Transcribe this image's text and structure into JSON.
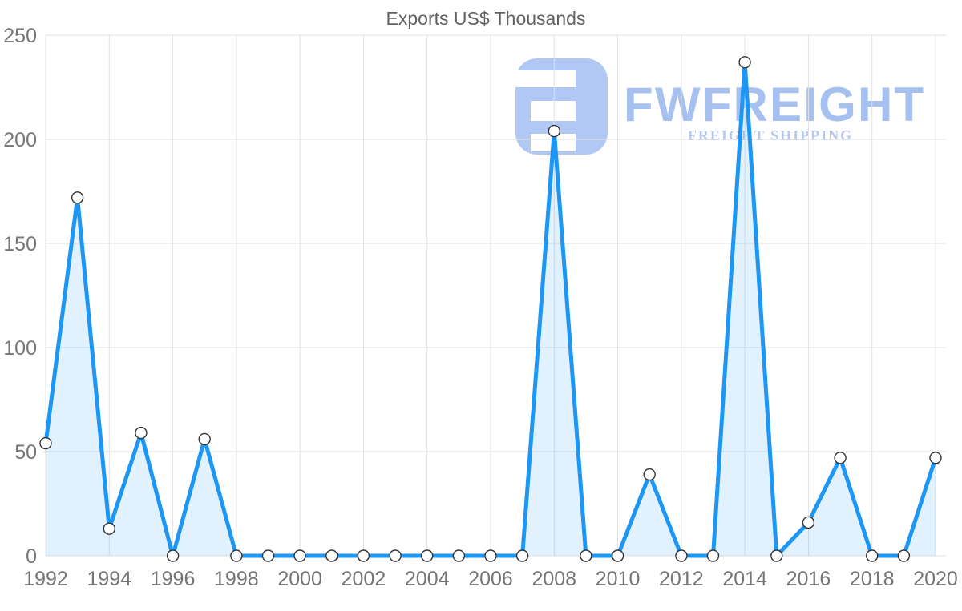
{
  "title": "Exports US$ Thousands",
  "watermark": {
    "brand": "FWFREIGHT",
    "tagline": "FREIGHT SHIPPING",
    "logo_color": "#aec5f3",
    "brand_color": "#a6c0ef",
    "tagline_color": "#b4c8f1"
  },
  "colors": {
    "line": "#1e96f3",
    "area_fill": "rgba(30,150,243,0.135)",
    "grid": "#e2e2e2",
    "tick_label": "#757575",
    "title_color": "#616161",
    "marker_fill": "#ffffff",
    "marker_stroke": "#333333"
  },
  "chart_data": {
    "type": "area",
    "title": "Exports US$ Thousands",
    "xlabel": "",
    "ylabel": "",
    "x": [
      1992,
      1993,
      1994,
      1995,
      1996,
      1997,
      1998,
      1999,
      2000,
      2001,
      2002,
      2003,
      2004,
      2005,
      2006,
      2007,
      2008,
      2009,
      2010,
      2011,
      2012,
      2013,
      2014,
      2015,
      2016,
      2017,
      2018,
      2019,
      2020
    ],
    "values": [
      54,
      172,
      13,
      59,
      0,
      56,
      0,
      0,
      0,
      0,
      0,
      0,
      0,
      0,
      0,
      0,
      204,
      0,
      0,
      39,
      0,
      0,
      237,
      0,
      16,
      47,
      0,
      0,
      47
    ],
    "ylim": [
      0,
      250
    ],
    "y_ticks": [
      0,
      50,
      100,
      150,
      200,
      250
    ],
    "x_ticks": [
      1992,
      1994,
      1996,
      1998,
      2000,
      2002,
      2004,
      2006,
      2008,
      2010,
      2012,
      2014,
      2016,
      2018,
      2020
    ],
    "grid": true,
    "legend": "none",
    "marker": "circle"
  }
}
